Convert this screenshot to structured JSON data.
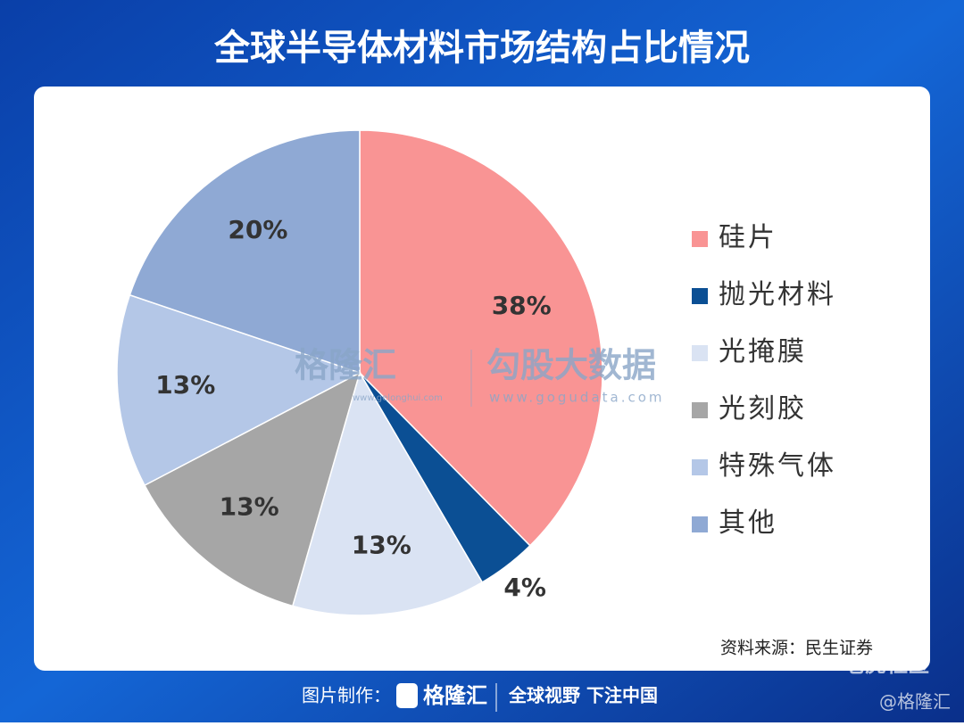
{
  "chart_data": {
    "type": "pie",
    "title": "全球半导体材料市场结构占比情况",
    "categories": [
      "硅片",
      "抛光材料",
      "光掩膜",
      "光刻胶",
      "特殊气体",
      "其他"
    ],
    "values": [
      38,
      4,
      13,
      13,
      13,
      20
    ],
    "value_labels": [
      "38%",
      "4%",
      "13%",
      "13%",
      "13%",
      "20%"
    ],
    "colors": [
      "#f99494",
      "#0b4f94",
      "#dae3f3",
      "#a6a6a6",
      "#b4c7e7",
      "#8fa9d4"
    ],
    "legend": "right",
    "source": "资料来源：民生证券"
  },
  "watermark": {
    "brand": "格隆汇",
    "brand_url": "www.gelonghui.com",
    "partner": "勾股大数据",
    "partner_url": "www.gogudata.com"
  },
  "footer": {
    "made_by": "图片制作：",
    "brand": "格隆汇",
    "slogan": "全球视野 下注中国",
    "corner_community": "老虎社区",
    "corner_handle": "@格隆汇"
  }
}
